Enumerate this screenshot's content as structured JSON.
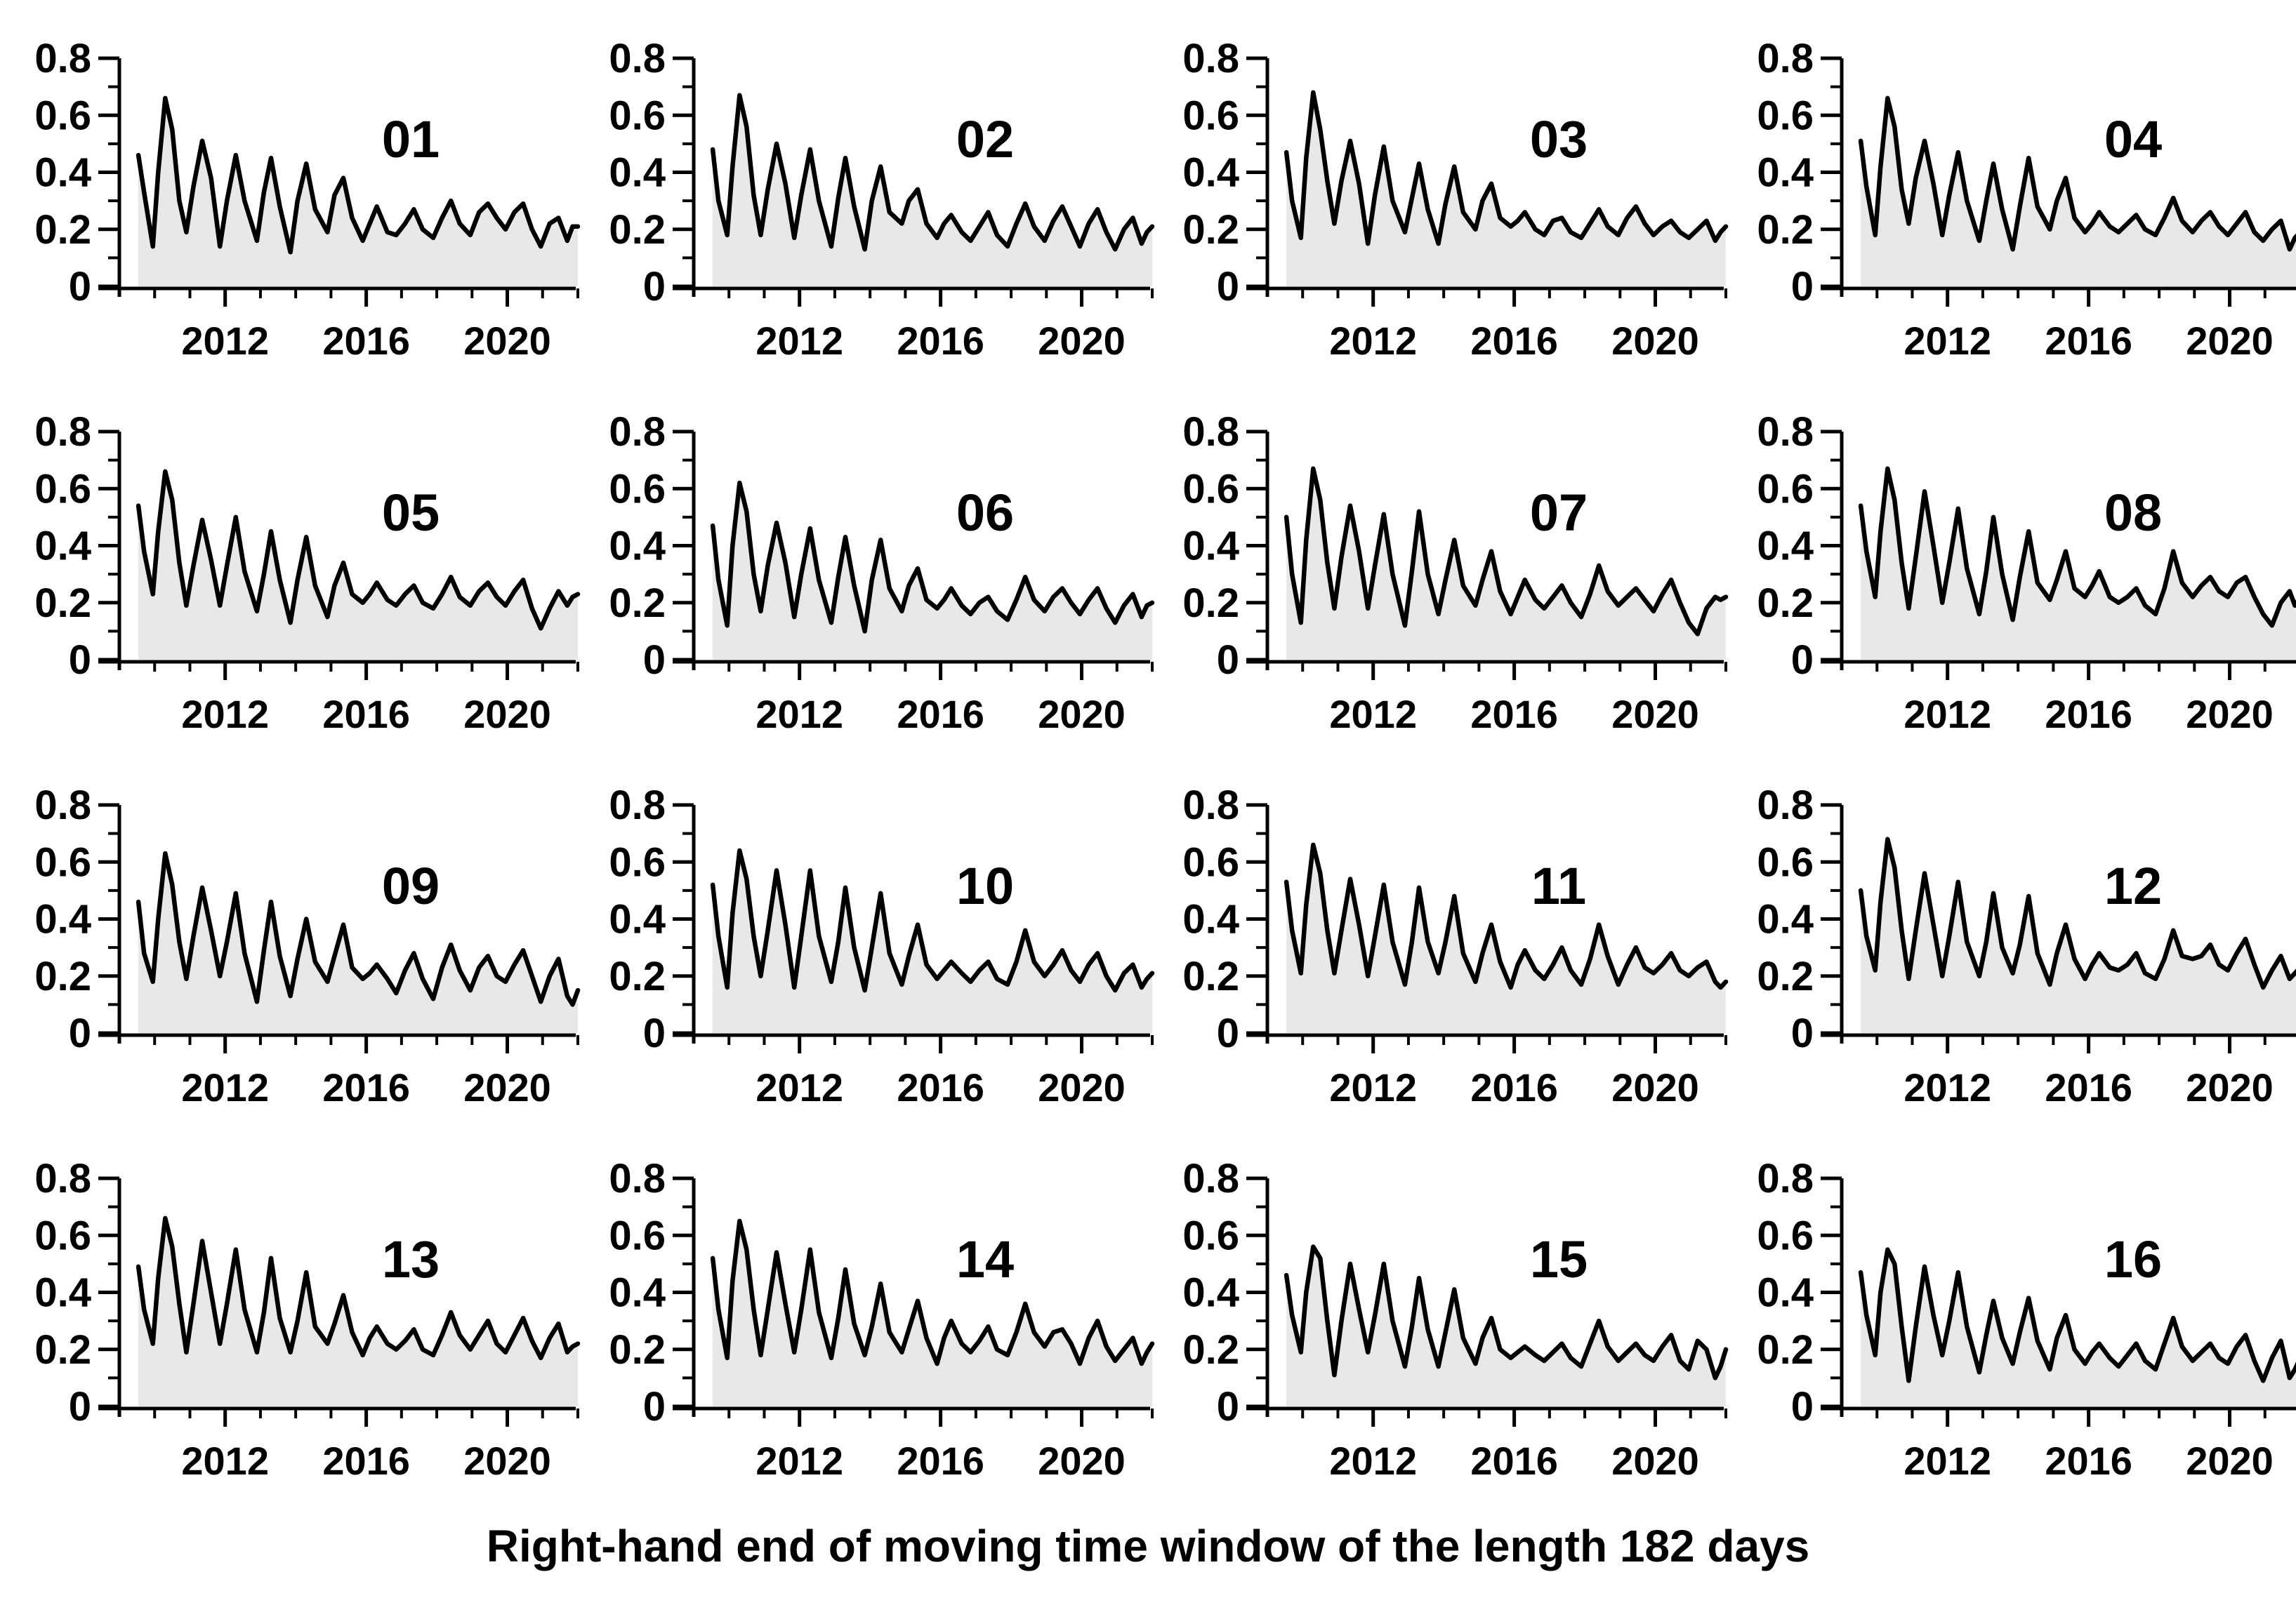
{
  "caption": "Right-hand end of moving time window of the length 182 days",
  "colors": {
    "line": "#000000",
    "fill": "#e8e8e8",
    "axis": "#000000",
    "text": "#000000",
    "background": "#ffffff"
  },
  "chart_data": {
    "type": "area",
    "layout": {
      "rows": 4,
      "cols": 4
    },
    "title": "",
    "xlabel": "Right-hand end of moving time window of the length 182 days",
    "ylabel": "",
    "xlim": [
      2009,
      2022
    ],
    "ylim": [
      0,
      0.8
    ],
    "grid": "off",
    "legend": "none",
    "xticks_major": [
      2012,
      2016,
      2020
    ],
    "xticks_minor": [
      2010,
      2011,
      2013,
      2014,
      2015,
      2017,
      2018,
      2019,
      2021,
      2022
    ],
    "xtick_labels": [
      "2012",
      "2016",
      "2020"
    ],
    "yticks_major": [
      0,
      0.2,
      0.4,
      0.6,
      0.8
    ],
    "yticks_minor": [
      0.1,
      0.3,
      0.5,
      0.7
    ],
    "ytick_labels": [
      "0",
      "0.2",
      "0.4",
      "0.6",
      "0.8"
    ],
    "x": [
      2009.54,
      2009.7,
      2009.95,
      2010.1,
      2010.3,
      2010.5,
      2010.7,
      2010.9,
      2011.1,
      2011.35,
      2011.6,
      2011.85,
      2012.05,
      2012.3,
      2012.55,
      2012.9,
      2013.1,
      2013.3,
      2013.55,
      2013.85,
      2014.05,
      2014.3,
      2014.55,
      2014.9,
      2015.1,
      2015.35,
      2015.6,
      2015.9,
      2016.1,
      2016.3,
      2016.6,
      2016.85,
      2017.1,
      2017.35,
      2017.6,
      2017.9,
      2018.15,
      2018.4,
      2018.65,
      2018.95,
      2019.2,
      2019.45,
      2019.7,
      2019.95,
      2020.2,
      2020.45,
      2020.7,
      2020.95,
      2021.2,
      2021.45,
      2021.7,
      2021.85,
      2022.0
    ],
    "panels": [
      {
        "label": "01",
        "values": [
          0.46,
          0.33,
          0.14,
          0.4,
          0.66,
          0.55,
          0.3,
          0.19,
          0.35,
          0.51,
          0.38,
          0.14,
          0.3,
          0.46,
          0.3,
          0.16,
          0.33,
          0.45,
          0.28,
          0.12,
          0.3,
          0.43,
          0.27,
          0.19,
          0.32,
          0.38,
          0.24,
          0.16,
          0.22,
          0.28,
          0.19,
          0.18,
          0.22,
          0.27,
          0.2,
          0.17,
          0.24,
          0.3,
          0.22,
          0.18,
          0.26,
          0.29,
          0.24,
          0.2,
          0.26,
          0.29,
          0.2,
          0.14,
          0.22,
          0.24,
          0.16,
          0.21,
          0.21
        ]
      },
      {
        "label": "02",
        "values": [
          0.48,
          0.3,
          0.18,
          0.42,
          0.67,
          0.56,
          0.32,
          0.18,
          0.34,
          0.5,
          0.36,
          0.17,
          0.32,
          0.48,
          0.3,
          0.14,
          0.31,
          0.45,
          0.28,
          0.13,
          0.3,
          0.42,
          0.26,
          0.22,
          0.3,
          0.34,
          0.22,
          0.17,
          0.22,
          0.25,
          0.19,
          0.16,
          0.21,
          0.26,
          0.18,
          0.14,
          0.22,
          0.29,
          0.21,
          0.16,
          0.23,
          0.28,
          0.21,
          0.14,
          0.22,
          0.27,
          0.19,
          0.13,
          0.2,
          0.24,
          0.15,
          0.19,
          0.21
        ]
      },
      {
        "label": "03",
        "values": [
          0.47,
          0.3,
          0.17,
          0.45,
          0.68,
          0.55,
          0.37,
          0.22,
          0.37,
          0.51,
          0.36,
          0.15,
          0.32,
          0.49,
          0.3,
          0.19,
          0.31,
          0.43,
          0.27,
          0.15,
          0.29,
          0.42,
          0.26,
          0.2,
          0.3,
          0.36,
          0.24,
          0.21,
          0.23,
          0.26,
          0.2,
          0.18,
          0.23,
          0.24,
          0.19,
          0.17,
          0.22,
          0.27,
          0.21,
          0.18,
          0.24,
          0.28,
          0.22,
          0.18,
          0.21,
          0.23,
          0.19,
          0.17,
          0.2,
          0.23,
          0.16,
          0.19,
          0.21
        ]
      },
      {
        "label": "04",
        "values": [
          0.51,
          0.35,
          0.18,
          0.42,
          0.66,
          0.56,
          0.34,
          0.22,
          0.38,
          0.51,
          0.36,
          0.18,
          0.32,
          0.47,
          0.3,
          0.16,
          0.3,
          0.43,
          0.27,
          0.13,
          0.28,
          0.45,
          0.28,
          0.2,
          0.3,
          0.38,
          0.24,
          0.19,
          0.22,
          0.26,
          0.21,
          0.19,
          0.22,
          0.25,
          0.2,
          0.18,
          0.24,
          0.31,
          0.23,
          0.19,
          0.23,
          0.26,
          0.21,
          0.18,
          0.22,
          0.26,
          0.19,
          0.16,
          0.2,
          0.23,
          0.13,
          0.17,
          0.19
        ]
      },
      {
        "label": "05",
        "values": [
          0.54,
          0.38,
          0.23,
          0.45,
          0.66,
          0.56,
          0.34,
          0.19,
          0.33,
          0.49,
          0.35,
          0.19,
          0.33,
          0.5,
          0.31,
          0.17,
          0.3,
          0.45,
          0.28,
          0.13,
          0.28,
          0.43,
          0.26,
          0.15,
          0.26,
          0.34,
          0.23,
          0.2,
          0.23,
          0.27,
          0.21,
          0.19,
          0.23,
          0.26,
          0.2,
          0.18,
          0.23,
          0.29,
          0.22,
          0.19,
          0.24,
          0.27,
          0.22,
          0.19,
          0.24,
          0.28,
          0.18,
          0.11,
          0.18,
          0.24,
          0.19,
          0.22,
          0.23
        ]
      },
      {
        "label": "06",
        "values": [
          0.47,
          0.28,
          0.12,
          0.4,
          0.62,
          0.52,
          0.3,
          0.17,
          0.33,
          0.48,
          0.34,
          0.15,
          0.3,
          0.46,
          0.28,
          0.13,
          0.29,
          0.43,
          0.26,
          0.1,
          0.28,
          0.42,
          0.25,
          0.17,
          0.26,
          0.32,
          0.21,
          0.18,
          0.21,
          0.25,
          0.19,
          0.16,
          0.2,
          0.22,
          0.17,
          0.14,
          0.21,
          0.29,
          0.21,
          0.17,
          0.22,
          0.25,
          0.2,
          0.16,
          0.21,
          0.25,
          0.18,
          0.13,
          0.19,
          0.23,
          0.15,
          0.19,
          0.2
        ]
      },
      {
        "label": "07",
        "values": [
          0.5,
          0.3,
          0.13,
          0.42,
          0.67,
          0.56,
          0.34,
          0.18,
          0.36,
          0.54,
          0.38,
          0.18,
          0.33,
          0.51,
          0.3,
          0.12,
          0.31,
          0.52,
          0.3,
          0.16,
          0.28,
          0.42,
          0.26,
          0.19,
          0.28,
          0.38,
          0.24,
          0.16,
          0.22,
          0.28,
          0.21,
          0.18,
          0.22,
          0.26,
          0.2,
          0.15,
          0.23,
          0.33,
          0.24,
          0.19,
          0.22,
          0.25,
          0.21,
          0.17,
          0.23,
          0.28,
          0.2,
          0.13,
          0.09,
          0.18,
          0.22,
          0.21,
          0.22
        ]
      },
      {
        "label": "08",
        "values": [
          0.54,
          0.38,
          0.22,
          0.45,
          0.67,
          0.56,
          0.34,
          0.18,
          0.36,
          0.59,
          0.4,
          0.2,
          0.34,
          0.53,
          0.32,
          0.16,
          0.31,
          0.5,
          0.3,
          0.14,
          0.29,
          0.45,
          0.27,
          0.21,
          0.28,
          0.38,
          0.25,
          0.22,
          0.26,
          0.31,
          0.22,
          0.2,
          0.22,
          0.25,
          0.19,
          0.16,
          0.25,
          0.38,
          0.27,
          0.22,
          0.26,
          0.29,
          0.24,
          0.22,
          0.27,
          0.29,
          0.22,
          0.16,
          0.12,
          0.2,
          0.24,
          0.19,
          0.22
        ]
      },
      {
        "label": "09",
        "values": [
          0.46,
          0.28,
          0.18,
          0.4,
          0.63,
          0.52,
          0.32,
          0.19,
          0.34,
          0.51,
          0.36,
          0.2,
          0.32,
          0.49,
          0.28,
          0.11,
          0.29,
          0.46,
          0.27,
          0.13,
          0.26,
          0.4,
          0.25,
          0.18,
          0.27,
          0.38,
          0.23,
          0.19,
          0.21,
          0.24,
          0.19,
          0.14,
          0.22,
          0.28,
          0.19,
          0.12,
          0.23,
          0.31,
          0.22,
          0.15,
          0.23,
          0.27,
          0.2,
          0.18,
          0.24,
          0.29,
          0.2,
          0.11,
          0.2,
          0.26,
          0.13,
          0.1,
          0.15
        ]
      },
      {
        "label": "10",
        "values": [
          0.52,
          0.34,
          0.16,
          0.42,
          0.64,
          0.54,
          0.34,
          0.2,
          0.36,
          0.57,
          0.38,
          0.16,
          0.34,
          0.57,
          0.34,
          0.18,
          0.32,
          0.51,
          0.3,
          0.15,
          0.3,
          0.49,
          0.28,
          0.17,
          0.27,
          0.38,
          0.24,
          0.19,
          0.22,
          0.25,
          0.21,
          0.18,
          0.22,
          0.25,
          0.19,
          0.17,
          0.25,
          0.36,
          0.25,
          0.2,
          0.24,
          0.29,
          0.22,
          0.18,
          0.24,
          0.28,
          0.2,
          0.15,
          0.21,
          0.24,
          0.16,
          0.19,
          0.21
        ]
      },
      {
        "label": "11",
        "values": [
          0.53,
          0.36,
          0.21,
          0.45,
          0.66,
          0.56,
          0.36,
          0.21,
          0.36,
          0.54,
          0.38,
          0.2,
          0.34,
          0.52,
          0.32,
          0.17,
          0.32,
          0.51,
          0.32,
          0.21,
          0.32,
          0.48,
          0.28,
          0.18,
          0.28,
          0.38,
          0.25,
          0.16,
          0.24,
          0.29,
          0.22,
          0.19,
          0.24,
          0.3,
          0.22,
          0.17,
          0.26,
          0.38,
          0.27,
          0.17,
          0.24,
          0.3,
          0.23,
          0.21,
          0.24,
          0.28,
          0.22,
          0.2,
          0.23,
          0.25,
          0.18,
          0.16,
          0.18
        ]
      },
      {
        "label": "12",
        "values": [
          0.5,
          0.34,
          0.22,
          0.46,
          0.68,
          0.58,
          0.36,
          0.19,
          0.36,
          0.56,
          0.38,
          0.2,
          0.34,
          0.53,
          0.32,
          0.2,
          0.32,
          0.49,
          0.3,
          0.21,
          0.31,
          0.48,
          0.28,
          0.17,
          0.28,
          0.38,
          0.26,
          0.19,
          0.24,
          0.28,
          0.23,
          0.22,
          0.24,
          0.28,
          0.21,
          0.19,
          0.26,
          0.36,
          0.27,
          0.26,
          0.27,
          0.31,
          0.24,
          0.22,
          0.28,
          0.33,
          0.24,
          0.16,
          0.22,
          0.27,
          0.19,
          0.21,
          0.23
        ]
      },
      {
        "label": "13",
        "values": [
          0.49,
          0.34,
          0.22,
          0.45,
          0.66,
          0.56,
          0.36,
          0.19,
          0.36,
          0.58,
          0.4,
          0.22,
          0.36,
          0.55,
          0.34,
          0.19,
          0.33,
          0.52,
          0.31,
          0.19,
          0.3,
          0.47,
          0.28,
          0.22,
          0.29,
          0.39,
          0.26,
          0.18,
          0.24,
          0.28,
          0.22,
          0.2,
          0.23,
          0.27,
          0.2,
          0.18,
          0.25,
          0.33,
          0.25,
          0.2,
          0.25,
          0.3,
          0.22,
          0.19,
          0.25,
          0.31,
          0.23,
          0.17,
          0.24,
          0.29,
          0.19,
          0.21,
          0.22
        ]
      },
      {
        "label": "14",
        "values": [
          0.52,
          0.34,
          0.17,
          0.44,
          0.65,
          0.55,
          0.34,
          0.18,
          0.34,
          0.54,
          0.36,
          0.19,
          0.34,
          0.55,
          0.33,
          0.17,
          0.31,
          0.48,
          0.29,
          0.18,
          0.28,
          0.43,
          0.26,
          0.19,
          0.27,
          0.37,
          0.24,
          0.15,
          0.24,
          0.3,
          0.22,
          0.19,
          0.23,
          0.28,
          0.2,
          0.18,
          0.26,
          0.36,
          0.26,
          0.21,
          0.26,
          0.27,
          0.22,
          0.15,
          0.24,
          0.3,
          0.21,
          0.16,
          0.2,
          0.24,
          0.15,
          0.19,
          0.22
        ]
      },
      {
        "label": "15",
        "values": [
          0.46,
          0.32,
          0.19,
          0.4,
          0.56,
          0.52,
          0.3,
          0.11,
          0.3,
          0.5,
          0.34,
          0.19,
          0.32,
          0.5,
          0.3,
          0.14,
          0.28,
          0.45,
          0.27,
          0.14,
          0.26,
          0.41,
          0.24,
          0.15,
          0.24,
          0.31,
          0.2,
          0.17,
          0.19,
          0.21,
          0.18,
          0.16,
          0.19,
          0.22,
          0.17,
          0.14,
          0.22,
          0.3,
          0.21,
          0.16,
          0.19,
          0.22,
          0.18,
          0.16,
          0.21,
          0.25,
          0.16,
          0.13,
          0.23,
          0.2,
          0.1,
          0.14,
          0.2
        ]
      },
      {
        "label": "16",
        "values": [
          0.47,
          0.32,
          0.18,
          0.4,
          0.55,
          0.5,
          0.28,
          0.09,
          0.28,
          0.49,
          0.32,
          0.18,
          0.3,
          0.47,
          0.28,
          0.12,
          0.25,
          0.37,
          0.24,
          0.15,
          0.26,
          0.38,
          0.23,
          0.13,
          0.24,
          0.32,
          0.2,
          0.15,
          0.19,
          0.22,
          0.17,
          0.14,
          0.18,
          0.22,
          0.16,
          0.13,
          0.22,
          0.31,
          0.21,
          0.16,
          0.19,
          0.22,
          0.17,
          0.15,
          0.21,
          0.25,
          0.16,
          0.09,
          0.17,
          0.23,
          0.1,
          0.13,
          0.17
        ]
      }
    ]
  }
}
